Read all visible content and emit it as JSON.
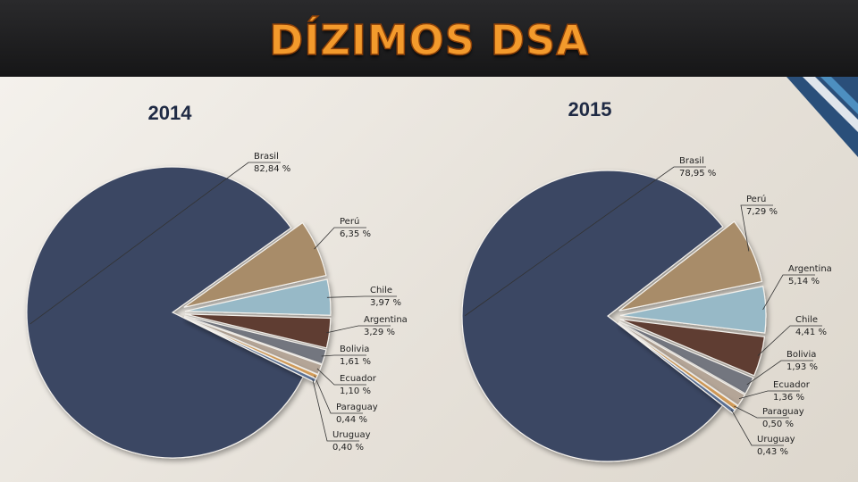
{
  "page": {
    "title": "DÍZIMOS DSA"
  },
  "chart_data": [
    {
      "type": "pie",
      "title": "2014",
      "slices": [
        {
          "label": "Brasil",
          "value": 82.84,
          "text": "82,84 %",
          "color": "#3b4664"
        },
        {
          "label": "Perú",
          "value": 6.35,
          "text": "6,35 %",
          "color": "#a88c69"
        },
        {
          "label": "Chile",
          "value": 3.97,
          "text": "3,97 %",
          "color": "#97b9c7"
        },
        {
          "label": "Argentina",
          "value": 3.29,
          "text": "3,29 %",
          "color": "#5e3c31"
        },
        {
          "label": "Bolivia",
          "value": 1.61,
          "text": "1,61 %",
          "color": "#73767f"
        },
        {
          "label": "Ecuador",
          "value": 1.1,
          "text": "1,10 %",
          "color": "#b4a597"
        },
        {
          "label": "Paraguay",
          "value": 0.44,
          "text": "0,44 %",
          "color": "#d8a05b"
        },
        {
          "label": "Uruguay",
          "value": 0.4,
          "text": "0,40 %",
          "color": "#5a6f93"
        }
      ]
    },
    {
      "type": "pie",
      "title": "2015",
      "slices": [
        {
          "label": "Brasil",
          "value": 78.95,
          "text": "78,95 %",
          "color": "#3b4664"
        },
        {
          "label": "Perú",
          "value": 7.29,
          "text": "7,29 %",
          "color": "#a88c69"
        },
        {
          "label": "Argentina",
          "value": 5.14,
          "text": "5,14 %",
          "color": "#97b9c7"
        },
        {
          "label": "Chile",
          "value": 4.41,
          "text": "4,41 %",
          "color": "#5e3c31"
        },
        {
          "label": "Bolivia",
          "value": 1.93,
          "text": "1,93 %",
          "color": "#73767f"
        },
        {
          "label": "Ecuador",
          "value": 1.36,
          "text": "1,36 %",
          "color": "#b4a597"
        },
        {
          "label": "Paraguay",
          "value": 0.5,
          "text": "0,50 %",
          "color": "#d8a05b"
        },
        {
          "label": "Uruguay",
          "value": 0.43,
          "text": "0,43 %",
          "color": "#5a6f93"
        }
      ]
    }
  ]
}
